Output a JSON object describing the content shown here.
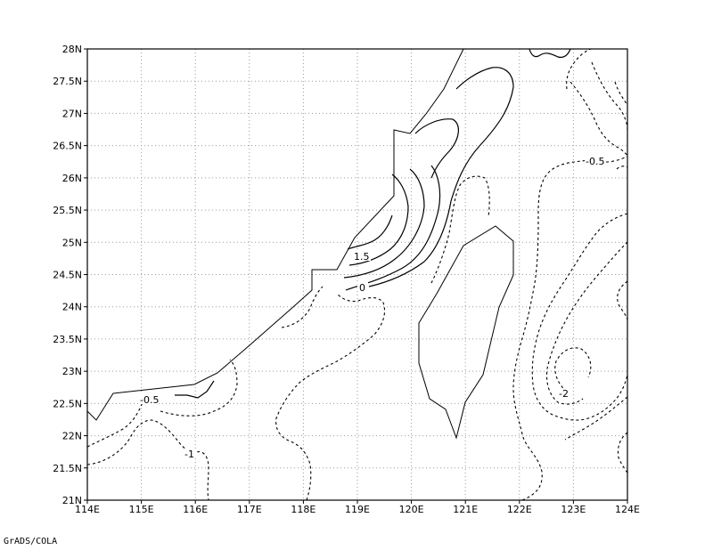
{
  "map": {
    "x_ticks": [
      "114E",
      "115E",
      "116E",
      "117E",
      "118E",
      "119E",
      "120E",
      "121E",
      "122E",
      "123E",
      "124E"
    ],
    "y_ticks": [
      "21N",
      "21.5N",
      "22N",
      "22.5N",
      "23N",
      "23.5N",
      "24N",
      "24.5N",
      "25N",
      "25.5N",
      "26N",
      "26.5N",
      "27N",
      "27.5N",
      "28N"
    ],
    "contour_labels": {
      "neg_half_west": "-0.5",
      "neg_one": "-1",
      "plus_1_5": "1.5",
      "zero": "0",
      "neg_half_east": "-0.5",
      "neg_two": "-2"
    },
    "credit": "GrADS/COLA"
  }
}
